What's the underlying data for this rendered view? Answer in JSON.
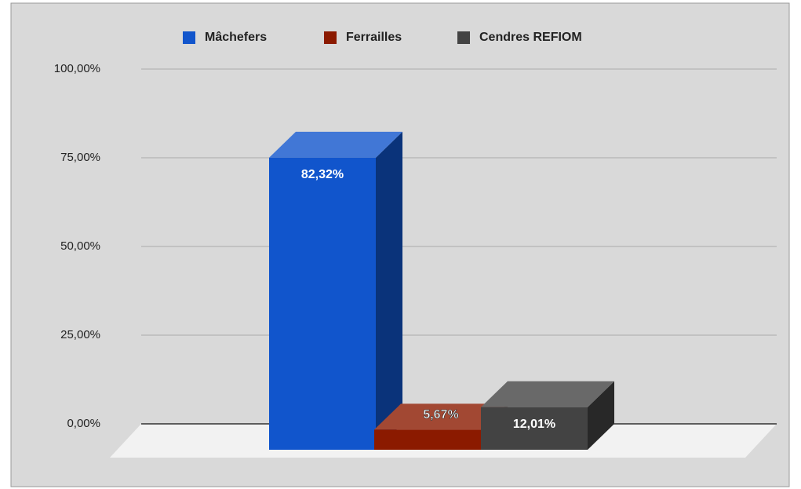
{
  "chart_data": {
    "type": "bar",
    "categories": [
      null
    ],
    "series": [
      {
        "name": "Mâchefers",
        "color": "#1155cc",
        "values": [
          82.32
        ],
        "value_labels": [
          "82,32%"
        ]
      },
      {
        "name": "Ferrailles",
        "color": "#8b1a00",
        "values": [
          5.67
        ],
        "value_labels": [
          "5,67%"
        ]
      },
      {
        "name": "Cendres REFIOM",
        "color": "#434343",
        "values": [
          12.01
        ],
        "value_labels": [
          "12,01%"
        ]
      }
    ],
    "ylim": [
      0,
      100
    ],
    "yticks": [
      {
        "value": 0,
        "label": "0,00%"
      },
      {
        "value": 25,
        "label": "25,00%"
      },
      {
        "value": 50,
        "label": "50,00%"
      },
      {
        "value": 75,
        "label": "75,00%"
      },
      {
        "value": 100,
        "label": "100,00%"
      }
    ],
    "grid": true,
    "legend": "top"
  }
}
